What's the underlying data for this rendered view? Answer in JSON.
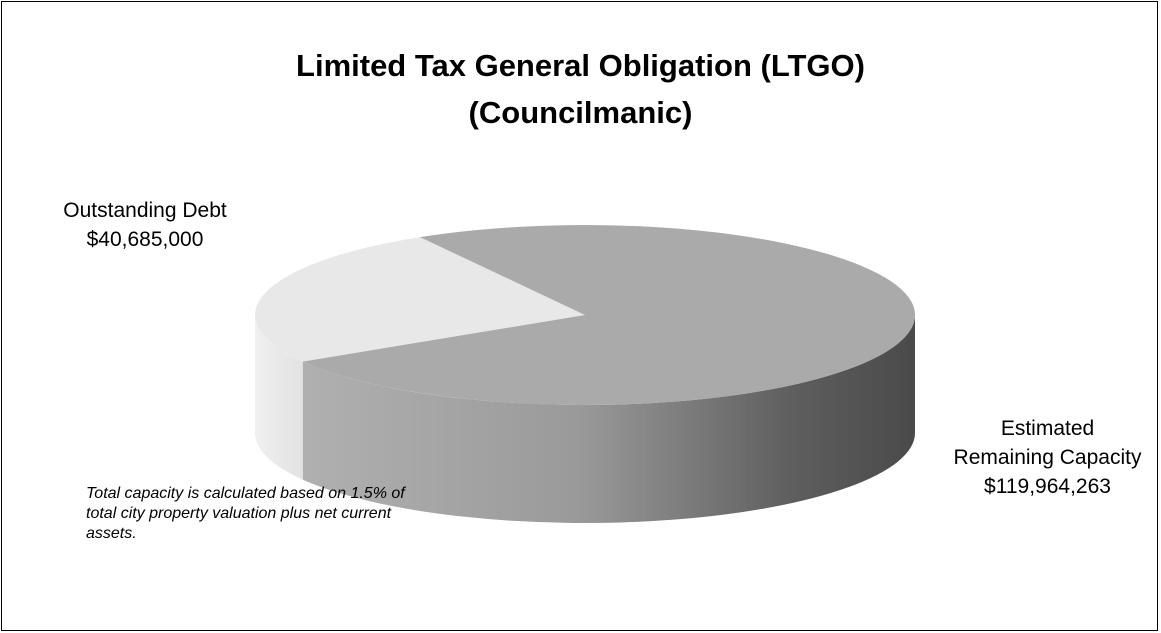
{
  "chart_data": {
    "type": "pie",
    "style": "3d",
    "title_line1": "Limited Tax General Obligation (LTGO)",
    "title_line2": "(Councilmanic)",
    "slices": [
      {
        "label": "Outstanding Debt",
        "value": 40685000,
        "value_text": "$40,685,000",
        "color": "#e8e8e8"
      },
      {
        "label_line1": "Estimated",
        "label_line2": "Remaining Capacity",
        "value": 119964263,
        "value_text": "$119,964,263",
        "color": "#aaaaaa"
      }
    ],
    "note": "Total capacity is calculated based on 1.5% of total city property valuation plus net current assets."
  }
}
